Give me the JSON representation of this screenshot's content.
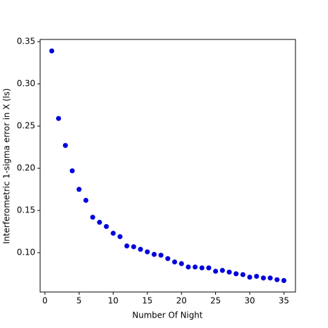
{
  "chart_data": {
    "type": "scatter",
    "xlabel": "Number Of Night",
    "ylabel": "Interferometric 1-sigma error in X (ls)",
    "color": "#0000dd",
    "x": [
      1,
      2,
      3,
      4,
      5,
      6,
      7,
      8,
      9,
      10,
      11,
      12,
      13,
      14,
      15,
      16,
      17,
      18,
      19,
      20,
      21,
      22,
      23,
      24,
      25,
      26,
      27,
      28,
      29,
      30,
      31,
      32,
      33,
      34,
      35
    ],
    "values": [
      0.339,
      0.259,
      0.227,
      0.197,
      0.175,
      0.162,
      0.142,
      0.136,
      0.131,
      0.123,
      0.119,
      0.108,
      0.107,
      0.104,
      0.101,
      0.098,
      0.097,
      0.093,
      0.089,
      0.087,
      0.083,
      0.083,
      0.082,
      0.082,
      0.078,
      0.079,
      0.077,
      0.075,
      0.074,
      0.071,
      0.072,
      0.07,
      0.07,
      0.068,
      0.067
    ],
    "xlim": [
      -0.7,
      36.7
    ],
    "ylim": [
      0.0534,
      0.3526
    ],
    "xticks": [
      0,
      5,
      10,
      15,
      20,
      25,
      30,
      35
    ],
    "yticks": [
      {
        "value": 0.1,
        "label": "0.10"
      },
      0.15,
      {
        "value": 0.2,
        "label": "0.20"
      },
      0.25,
      {
        "value": 0.3,
        "label": "0.30"
      },
      0.35
    ]
  }
}
